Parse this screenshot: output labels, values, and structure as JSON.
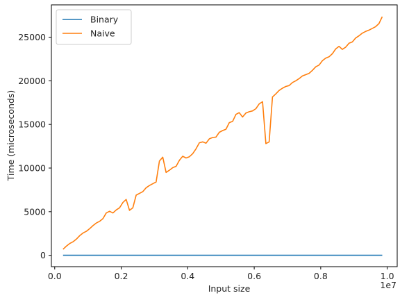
{
  "chart_data": {
    "type": "line",
    "xlabel": "Input size",
    "ylabel": "Time (microseconds)",
    "x_offset_label": "1e7",
    "xlim": [
      -100000,
      10300000
    ],
    "ylim": [
      -1300000,
      28700
    ],
    "ylim_data": [
      -1300,
      28700
    ],
    "x_ticks": [
      0.0,
      0.2,
      0.4,
      0.6,
      0.8,
      1.0
    ],
    "x_tick_labels": [
      "0.0",
      "0.2",
      "0.4",
      "0.6",
      "0.8",
      "1.0"
    ],
    "y_ticks": [
      0,
      5000,
      10000,
      15000,
      20000,
      25000
    ],
    "y_tick_labels": [
      "0",
      "5000",
      "10000",
      "15000",
      "20000",
      "25000"
    ],
    "legend": {
      "placement": "top-left"
    },
    "x": [
      250000,
      350000,
      450000,
      550000,
      650000,
      750000,
      850000,
      950000,
      1050000,
      1150000,
      1250000,
      1350000,
      1450000,
      1550000,
      1650000,
      1750000,
      1850000,
      1950000,
      2050000,
      2150000,
      2250000,
      2350000,
      2450000,
      2550000,
      2650000,
      2750000,
      2850000,
      2950000,
      3050000,
      3150000,
      3250000,
      3350000,
      3450000,
      3550000,
      3650000,
      3750000,
      3850000,
      3950000,
      4050000,
      4150000,
      4250000,
      4350000,
      4450000,
      4550000,
      4650000,
      4750000,
      4850000,
      4950000,
      5050000,
      5150000,
      5250000,
      5350000,
      5450000,
      5550000,
      5650000,
      5750000,
      5850000,
      5950000,
      6050000,
      6150000,
      6250000,
      6350000,
      6450000,
      6550000,
      6650000,
      6750000,
      6850000,
      6950000,
      7050000,
      7150000,
      7250000,
      7350000,
      7450000,
      7550000,
      7650000,
      7750000,
      7850000,
      7950000,
      8050000,
      8150000,
      8250000,
      8350000,
      8450000,
      8550000,
      8650000,
      8750000,
      8850000,
      8950000,
      9050000,
      9150000,
      9250000,
      9350000,
      9450000,
      9550000,
      9650000,
      9750000,
      9850000
    ],
    "series": [
      {
        "name": "Binary",
        "color": "#1f77b4",
        "values": [
          5,
          5,
          5,
          5,
          5,
          5,
          5,
          5,
          5,
          5,
          5,
          5,
          5,
          5,
          5,
          5,
          5,
          5,
          5,
          5,
          5,
          5,
          5,
          5,
          5,
          5,
          5,
          5,
          5,
          5,
          5,
          5,
          5,
          5,
          5,
          5,
          5,
          5,
          5,
          5,
          5,
          5,
          5,
          5,
          5,
          5,
          5,
          5,
          5,
          5,
          5,
          5,
          5,
          5,
          5,
          5,
          5,
          5,
          5,
          5,
          5,
          5,
          5,
          5,
          5,
          5,
          5,
          5,
          5,
          5,
          5,
          5,
          5,
          5,
          5,
          5,
          5,
          5,
          5,
          5,
          5,
          5,
          5,
          5,
          5,
          5,
          5,
          5,
          5,
          5,
          5,
          5,
          5,
          5,
          5,
          5,
          5
        ]
      },
      {
        "name": "Naive",
        "color": "#ff7f0e",
        "values": [
          700,
          1050,
          1350,
          1550,
          1850,
          2250,
          2550,
          2750,
          3050,
          3400,
          3700,
          3900,
          4200,
          4850,
          5050,
          4850,
          5200,
          5450,
          6050,
          6400,
          5150,
          5450,
          6900,
          7100,
          7300,
          7750,
          8000,
          8200,
          8400,
          10800,
          11250,
          9500,
          9750,
          10050,
          10200,
          10900,
          11350,
          11150,
          11300,
          11650,
          12200,
          12900,
          13000,
          12850,
          13350,
          13500,
          13550,
          14100,
          14300,
          14450,
          15200,
          15350,
          16150,
          16350,
          15850,
          16300,
          16450,
          16550,
          16800,
          17350,
          17600,
          12800,
          13000,
          18150,
          18500,
          18900,
          19150,
          19350,
          19450,
          19800,
          20000,
          20250,
          20550,
          20700,
          20850,
          21200,
          21600,
          21800,
          22300,
          22600,
          22750,
          23100,
          23650,
          23950,
          23600,
          23850,
          24300,
          24450,
          24900,
          25150,
          25450,
          25650,
          25800,
          26000,
          26200,
          26550,
          27350
        ]
      }
    ]
  }
}
